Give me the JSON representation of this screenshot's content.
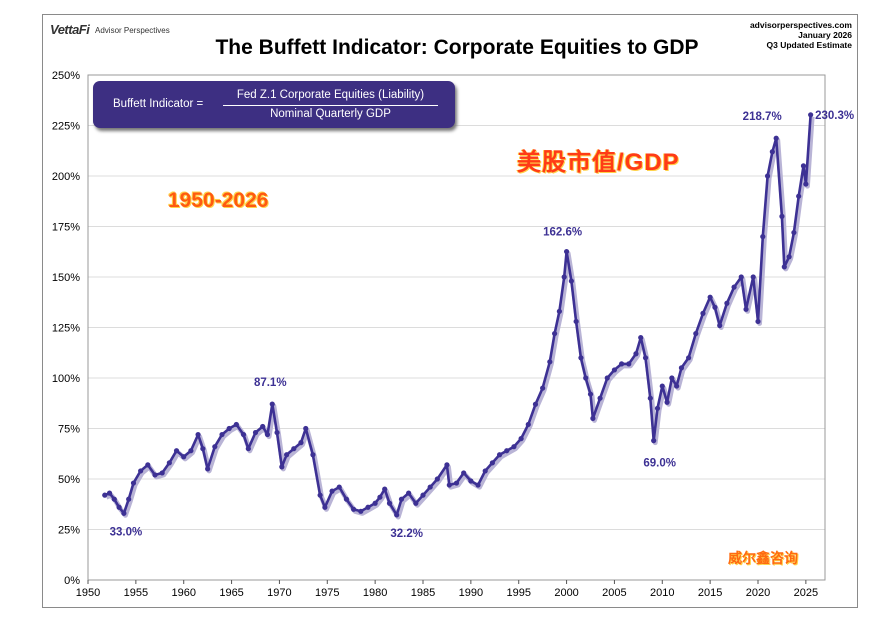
{
  "header": {
    "logo": "VettaFi",
    "logo_sub": "Advisor Perspectives",
    "title": "The Buffett Indicator: Corporate Equities to GDP",
    "site": "advisorperspectives.com",
    "date": "January 2026",
    "estimate": "Q3 Updated Estimate"
  },
  "formula": {
    "lhs": "Buffett Indicator =",
    "numerator": "Fed Z.1 Corporate Equities (Liability)",
    "denominator": "Nominal Quarterly GDP"
  },
  "overlay": {
    "cn_title": "美股市值/GDP",
    "range": "1950-2026",
    "watermark": "威尔鑫咨询"
  },
  "colors": {
    "series": "#3d3194",
    "grid": "#dcdcdc"
  },
  "chart_data": {
    "type": "line",
    "title": "The Buffett Indicator: Corporate Equities to GDP",
    "xlabel": "",
    "ylabel": "",
    "xlim": [
      1950,
      2027
    ],
    "ylim": [
      0,
      250
    ],
    "x_ticks": [
      1950,
      1955,
      1960,
      1965,
      1970,
      1975,
      1980,
      1985,
      1990,
      1995,
      2000,
      2005,
      2010,
      2015,
      2020,
      2025
    ],
    "y_ticks": [
      0,
      25,
      50,
      75,
      100,
      125,
      150,
      175,
      200,
      225,
      250
    ],
    "y_tick_labels": [
      "0%",
      "25%",
      "50%",
      "75%",
      "100%",
      "125%",
      "150%",
      "175%",
      "200%",
      "225%",
      "250%"
    ],
    "grid": true,
    "series": [
      {
        "name": "Buffett Indicator",
        "x": [
          1951.75,
          1952.25,
          1952.75,
          1953.25,
          1953.75,
          1954.25,
          1954.75,
          1955.5,
          1956.25,
          1957.0,
          1957.75,
          1958.5,
          1959.25,
          1960.0,
          1960.75,
          1961.5,
          1962.0,
          1962.5,
          1963.25,
          1964.0,
          1964.75,
          1965.5,
          1966.25,
          1966.75,
          1967.5,
          1968.25,
          1968.75,
          1969.25,
          1969.75,
          1970.25,
          1970.75,
          1971.5,
          1972.25,
          1972.75,
          1973.5,
          1974.25,
          1974.75,
          1975.5,
          1976.25,
          1977.0,
          1977.75,
          1978.5,
          1979.25,
          1980.0,
          1980.5,
          1981.0,
          1981.5,
          1982.25,
          1982.75,
          1983.5,
          1984.25,
          1985.0,
          1985.75,
          1986.5,
          1987.5,
          1987.75,
          1988.5,
          1989.25,
          1990.0,
          1990.75,
          1991.5,
          1992.25,
          1993.0,
          1993.75,
          1994.5,
          1995.25,
          1996.0,
          1996.75,
          1997.5,
          1998.25,
          1998.75,
          1999.25,
          1999.75,
          2000.0,
          2000.5,
          2001.0,
          2001.5,
          2002.0,
          2002.5,
          2002.75,
          2003.5,
          2004.25,
          2005.0,
          2005.75,
          2006.5,
          2007.25,
          2007.75,
          2008.25,
          2008.75,
          2009.1,
          2009.5,
          2010.0,
          2010.5,
          2011.0,
          2011.5,
          2012.0,
          2012.75,
          2013.5,
          2014.25,
          2015.0,
          2015.5,
          2016.0,
          2016.75,
          2017.5,
          2018.25,
          2018.75,
          2019.5,
          2020.0,
          2020.5,
          2021.0,
          2021.5,
          2021.9,
          2022.5,
          2022.75,
          2023.25,
          2023.75,
          2024.25,
          2024.75,
          2025.0,
          2025.5
        ],
        "y": [
          42,
          43,
          40,
          36,
          33.0,
          40,
          48,
          54,
          57,
          52,
          53,
          58,
          64,
          61,
          64,
          72,
          65,
          55,
          66,
          72,
          75,
          77,
          72,
          65,
          73,
          76,
          72,
          87.1,
          73,
          56,
          62,
          65,
          68,
          75,
          62,
          42,
          36,
          44,
          46,
          40,
          35,
          34,
          36,
          38,
          41,
          45,
          38,
          32.2,
          40,
          43,
          38,
          42,
          46,
          50,
          57,
          47,
          48,
          53,
          49,
          47,
          54,
          58,
          62,
          64,
          66,
          70,
          77,
          87,
          95,
          108,
          122,
          133,
          150,
          162.6,
          148,
          128,
          110,
          100,
          92,
          80,
          90,
          100,
          104,
          107,
          107,
          112,
          120,
          110,
          90,
          69.0,
          85,
          96,
          88,
          100,
          96,
          105,
          110,
          122,
          132,
          140,
          135,
          126,
          137,
          145,
          150,
          134,
          150,
          128,
          170,
          200,
          212,
          218.7,
          180,
          155,
          160,
          172,
          190,
          205,
          196,
          230.3
        ]
      }
    ],
    "annotations": [
      {
        "x": 1953.75,
        "y": 33.0,
        "label": "33.0%"
      },
      {
        "x": 1969.25,
        "y": 87.1,
        "label": "87.1%"
      },
      {
        "x": 1982.25,
        "y": 32.2,
        "label": "32.2%"
      },
      {
        "x": 2000.0,
        "y": 162.6,
        "label": "162.6%"
      },
      {
        "x": 2009.1,
        "y": 69.0,
        "label": "69.0%"
      },
      {
        "x": 2021.9,
        "y": 218.7,
        "label": "218.7%"
      },
      {
        "x": 2025.5,
        "y": 230.3,
        "label": "230.3%"
      }
    ]
  }
}
